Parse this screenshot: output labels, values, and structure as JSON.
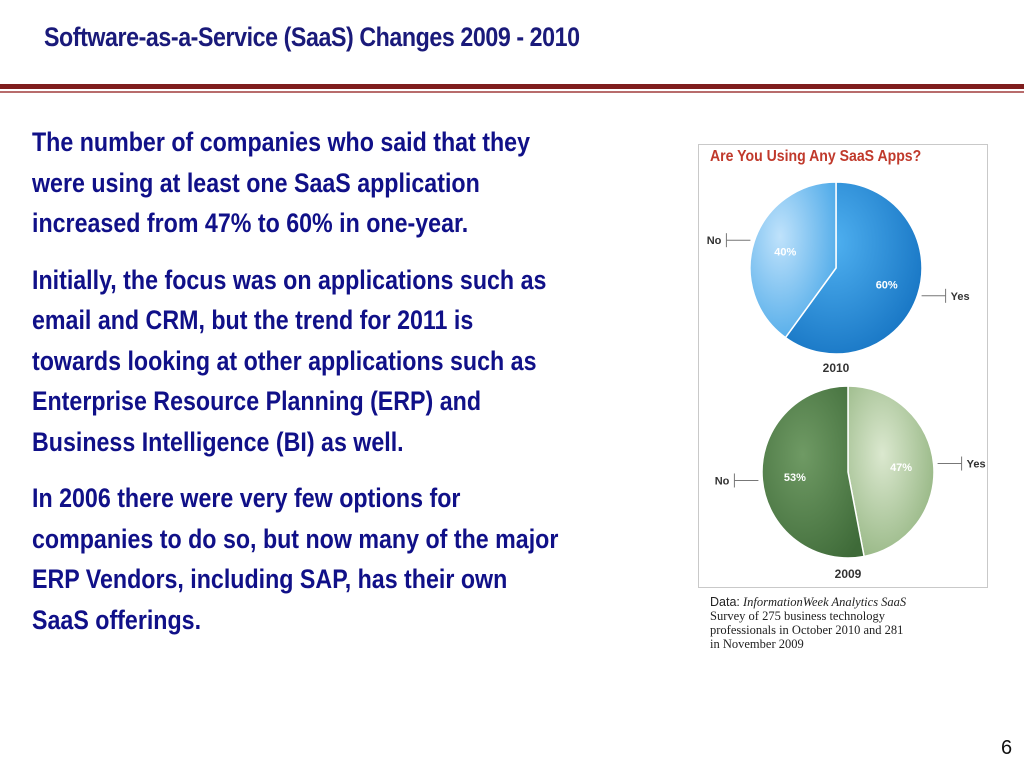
{
  "slide": {
    "title": "Software-as-a-Service (SaaS) Changes 2009 - 2010",
    "paragraphs": [
      [
        "The number of companies who said that they",
        "were using at least one SaaS application",
        "increased from 47% to 60% in one-year."
      ],
      [
        "Initially, the focus was on applications such as",
        "email and CRM, but the trend for 2011 is",
        "towards looking at other applications such as",
        "Enterprise Resource Planning (ERP) and",
        "Business Intelligence (BI) as well."
      ],
      [
        "In 2006 there were very few options for",
        "companies to do so, but now many of the major",
        "ERP Vendors, including SAP, has their own",
        "SaaS offerings."
      ]
    ],
    "page_number": "6"
  },
  "source_note": {
    "label": "Data:",
    "lines": [
      "InformationWeek Analytics SaaS",
      "Survey of 275 business technology",
      "professionals in October 2010 and 281",
      "in November 2009"
    ]
  },
  "colors": {
    "title_text": "#1a1a7a",
    "body_text": "#101088",
    "rule": "#7f1d1d",
    "chart_title": "#c0392b",
    "yes_2010": "#1e86d6",
    "no_2010": "#4aa8e8",
    "yes_2009": "#9bbb8a",
    "no_2009": "#4e7c45"
  },
  "chart_data": {
    "type": "pie",
    "title": "Are You Using Any SaaS Apps?",
    "charts": [
      {
        "label": "2010",
        "slices": [
          {
            "name": "Yes",
            "value": 60,
            "label": "60%"
          },
          {
            "name": "No",
            "value": 40,
            "label": "40%"
          }
        ]
      },
      {
        "label": "2009",
        "slices": [
          {
            "name": "Yes",
            "value": 47,
            "label": "47%"
          },
          {
            "name": "No",
            "value": 53,
            "label": "53%"
          }
        ]
      }
    ]
  }
}
